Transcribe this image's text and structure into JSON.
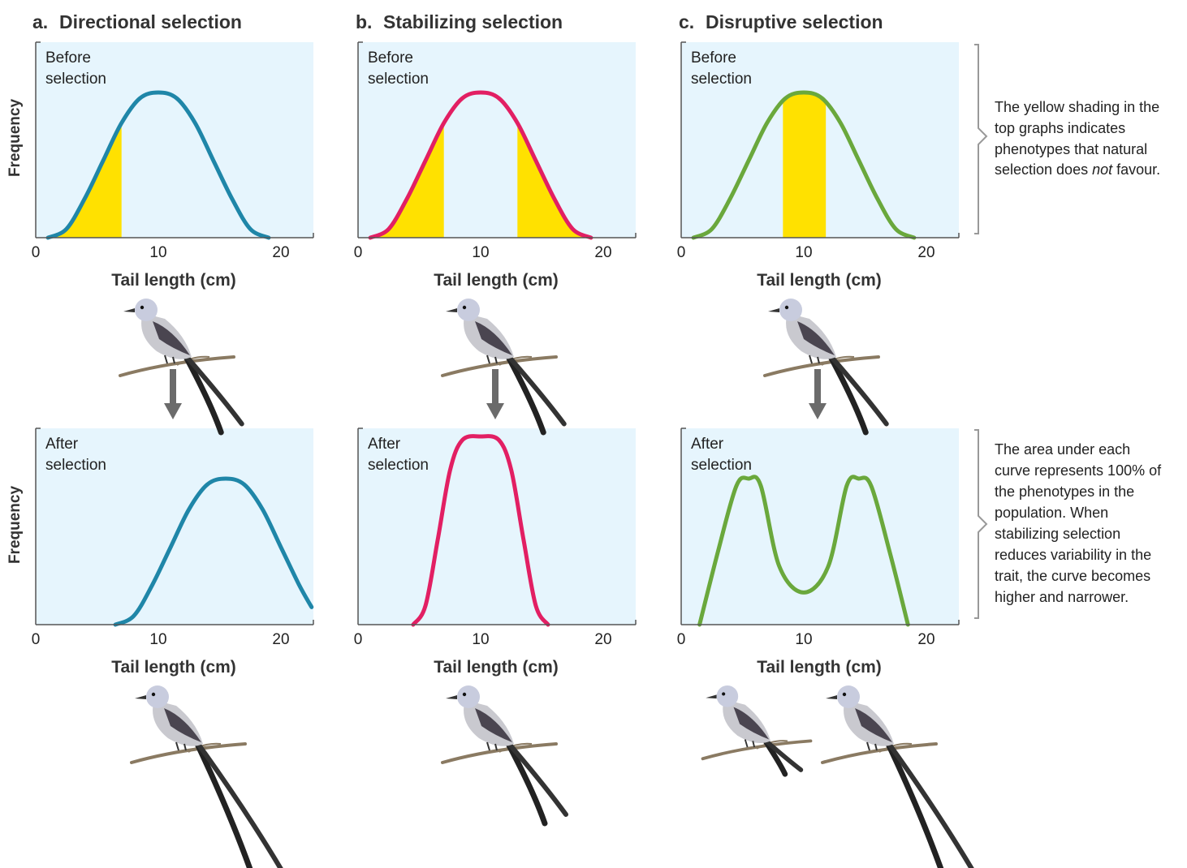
{
  "figure": {
    "columns": [
      {
        "letter": "a.",
        "title": "Directional selection",
        "color": "#1f86a8"
      },
      {
        "letter": "b.",
        "title": "Stabilizing selection",
        "color": "#e21f63"
      },
      {
        "letter": "c.",
        "title": "Disruptive selection",
        "color": "#6aa83c"
      }
    ],
    "before_label": [
      "Before",
      "selection"
    ],
    "after_label": [
      "After",
      "selection"
    ],
    "x_axis_title": "Tail length (cm)",
    "y_axis_title": "Frequency",
    "tick_labels": [
      "0",
      "10",
      "20"
    ],
    "notes": {
      "top": {
        "lines": [
          "The yellow shading in the",
          "top graphs indicates",
          "phenotypes that natural",
          "selection does "
        ],
        "em_word": "not",
        "tail": " favour."
      },
      "bottom": {
        "lines": [
          "The area under each",
          "curve represents 100% of",
          "the phenotypes in the",
          "population. When",
          "stabilizing selection",
          "reduces variability in the",
          "trait, the curve becomes",
          "higher and narrower."
        ]
      }
    },
    "colors": {
      "panel_bg": "#e6f5fd",
      "shading": "#ffe100",
      "arrow": "#6b6b6b",
      "bracket": "#999999"
    }
  },
  "chart_data": [
    {
      "type": "line",
      "panel": "a. before",
      "xlabel": "Tail length (cm)",
      "ylabel": "Frequency",
      "xlim": [
        0,
        22.5
      ],
      "curve": "single peak centred at 10 cm",
      "x": [
        1,
        2.5,
        4,
        5.5,
        7,
        8.5,
        10,
        11.5,
        13,
        14.5,
        16,
        17.5,
        19
      ],
      "y": [
        0,
        0.06,
        0.27,
        0.53,
        0.79,
        0.96,
        1.0,
        0.96,
        0.79,
        0.53,
        0.27,
        0.06,
        0
      ],
      "shaded_range": [
        [
          1,
          7
        ]
      ]
    },
    {
      "type": "line",
      "panel": "a. after",
      "xlabel": "Tail length (cm)",
      "ylabel": "Frequency",
      "xlim": [
        0,
        22.5
      ],
      "curve": "single peak shifted to ~15.5 cm",
      "x": [
        6.5,
        8,
        9.5,
        11,
        12.5,
        14,
        15.5,
        17,
        18.5,
        20,
        21.5,
        22.5
      ],
      "y": [
        0,
        0.06,
        0.27,
        0.53,
        0.79,
        0.96,
        1.0,
        0.96,
        0.79,
        0.53,
        0.27,
        0.12
      ]
    },
    {
      "type": "line",
      "panel": "b. before",
      "xlabel": "Tail length (cm)",
      "ylabel": "Frequency",
      "xlim": [
        0,
        22.5
      ],
      "curve": "single peak centred at 10 cm",
      "x": [
        1,
        2.5,
        4,
        5.5,
        7,
        8.5,
        10,
        11.5,
        13,
        14.5,
        16,
        17.5,
        19
      ],
      "y": [
        0,
        0.06,
        0.27,
        0.53,
        0.79,
        0.96,
        1.0,
        0.96,
        0.79,
        0.53,
        0.27,
        0.06,
        0
      ],
      "shaded_range": [
        [
          1,
          7
        ],
        [
          13,
          19
        ]
      ]
    },
    {
      "type": "line",
      "panel": "b. after",
      "xlabel": "Tail length (cm)",
      "ylabel": "Frequency",
      "xlim": [
        0,
        22.5
      ],
      "curve": "tall narrow peak at 10 cm",
      "x": [
        4.5,
        5.5,
        6.5,
        7.5,
        8.5,
        10,
        11.5,
        12.5,
        13.5,
        14.5,
        15.5
      ],
      "y": [
        0,
        0.1,
        0.45,
        0.82,
        0.98,
        1.0,
        0.98,
        0.82,
        0.45,
        0.1,
        0
      ]
    },
    {
      "type": "line",
      "panel": "c. before",
      "xlabel": "Tail length (cm)",
      "ylabel": "Frequency",
      "xlim": [
        0,
        22.5
      ],
      "curve": "single peak centred at 10 cm",
      "x": [
        1,
        2.5,
        4,
        5.5,
        7,
        8.5,
        10,
        11.5,
        13,
        14.5,
        16,
        17.5,
        19
      ],
      "y": [
        0,
        0.06,
        0.27,
        0.53,
        0.79,
        0.96,
        1.0,
        0.96,
        0.79,
        0.53,
        0.27,
        0.06,
        0
      ],
      "shaded_range": [
        [
          8.3,
          11.8
        ]
      ]
    },
    {
      "type": "line",
      "panel": "c. after",
      "xlabel": "Tail length (cm)",
      "ylabel": "Frequency",
      "xlim": [
        0,
        22.5
      ],
      "curve": "bimodal, peaks near 5.5 cm and 14.5 cm",
      "x": [
        1.5,
        3,
        4.5,
        5.5,
        6.5,
        8,
        10,
        12,
        13.5,
        14.5,
        15.5,
        17,
        18.5
      ],
      "y": [
        0,
        0.5,
        0.95,
        1.0,
        0.95,
        0.4,
        0.22,
        0.4,
        0.95,
        1.0,
        0.95,
        0.5,
        0
      ]
    }
  ]
}
